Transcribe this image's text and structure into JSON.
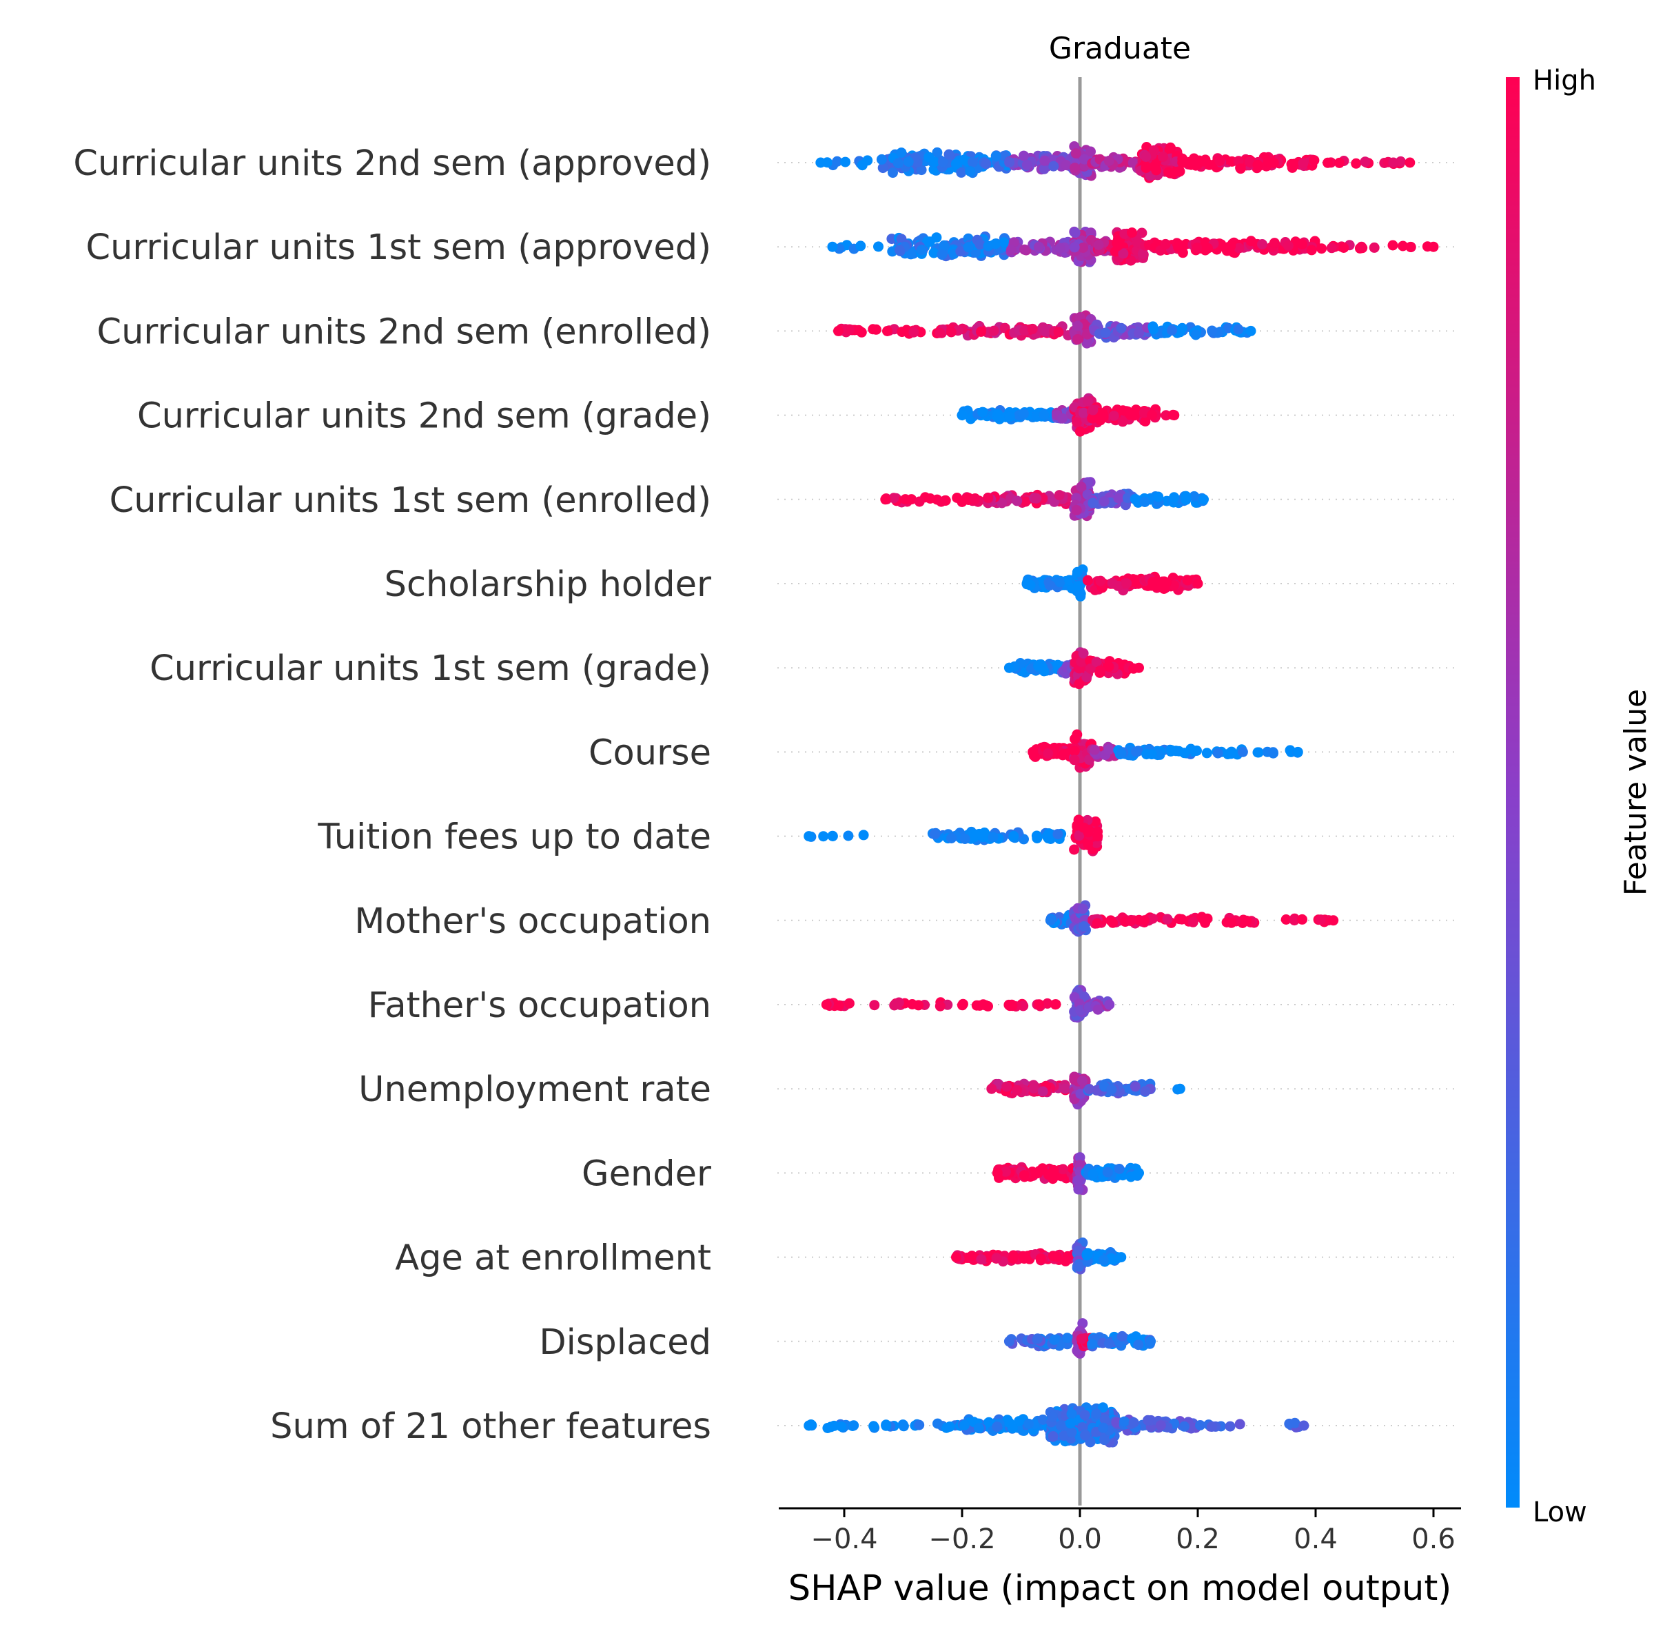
{
  "chart_data": {
    "type": "scatter",
    "subtype": "shap-beeswarm",
    "title": "Graduate",
    "xlabel": "SHAP value (impact on model output)",
    "xlim": [
      -0.51,
      0.645
    ],
    "xticks": [
      -0.4,
      -0.2,
      0.0,
      0.2,
      0.4,
      0.6
    ],
    "xtick_labels": [
      "−0.4",
      "−0.2",
      "0.0",
      "0.2",
      "0.4",
      "0.6"
    ],
    "grid": "dotted row guides",
    "colorbar": {
      "label": "Feature value",
      "high_label": "High",
      "low_label": "Low",
      "low_color": "#008bfb",
      "mid_color": "#8a3fc9",
      "high_color": "#ff0052"
    },
    "features": [
      {
        "name": "Curricular units 2nd sem (approved)",
        "min": -0.44,
        "max": 0.56,
        "clusters": [
          {
            "from": -0.44,
            "to": -0.34,
            "n": 8,
            "spread": 0.2,
            "c": 0.0
          },
          {
            "from": -0.34,
            "to": -0.12,
            "n": 110,
            "spread": 0.6,
            "c": 0.1
          },
          {
            "from": -0.12,
            "to": -0.01,
            "n": 60,
            "spread": 0.35,
            "c": 0.45
          },
          {
            "from": -0.01,
            "to": 0.02,
            "n": 60,
            "spread": 1.0,
            "c": 0.55
          },
          {
            "from": 0.02,
            "to": 0.1,
            "n": 40,
            "spread": 0.3,
            "c": 0.7
          },
          {
            "from": 0.1,
            "to": 0.17,
            "n": 120,
            "spread": 0.9,
            "c": 0.95
          },
          {
            "from": 0.17,
            "to": 0.4,
            "n": 90,
            "spread": 0.3,
            "c": 1.0
          },
          {
            "from": 0.4,
            "to": 0.56,
            "n": 16,
            "spread": 0.1,
            "c": 1.0
          }
        ]
      },
      {
        "name": "Curricular units 1st sem (approved)",
        "min": -0.42,
        "max": 0.6,
        "clusters": [
          {
            "from": -0.42,
            "to": -0.32,
            "n": 6,
            "spread": 0.15,
            "c": 0.0
          },
          {
            "from": -0.32,
            "to": -0.12,
            "n": 100,
            "spread": 0.55,
            "c": 0.1
          },
          {
            "from": -0.12,
            "to": -0.01,
            "n": 50,
            "spread": 0.35,
            "c": 0.55
          },
          {
            "from": -0.01,
            "to": 0.02,
            "n": 60,
            "spread": 1.0,
            "c": 0.6
          },
          {
            "from": 0.02,
            "to": 0.06,
            "n": 30,
            "spread": 0.3,
            "c": 0.8
          },
          {
            "from": 0.06,
            "to": 0.11,
            "n": 90,
            "spread": 0.9,
            "c": 0.95
          },
          {
            "from": 0.11,
            "to": 0.4,
            "n": 100,
            "spread": 0.3,
            "c": 1.0
          },
          {
            "from": 0.4,
            "to": 0.6,
            "n": 16,
            "spread": 0.1,
            "c": 1.0
          }
        ]
      },
      {
        "name": "Curricular units 2nd sem (enrolled)",
        "min": -0.41,
        "max": 0.29,
        "clusters": [
          {
            "from": -0.41,
            "to": -0.22,
            "n": 30,
            "spread": 0.12,
            "c": 1.0
          },
          {
            "from": -0.22,
            "to": -0.02,
            "n": 70,
            "spread": 0.25,
            "c": 0.9
          },
          {
            "from": -0.01,
            "to": 0.02,
            "n": 50,
            "spread": 1.0,
            "c": 0.65
          },
          {
            "from": 0.02,
            "to": 0.12,
            "n": 50,
            "spread": 0.35,
            "c": 0.4
          },
          {
            "from": 0.12,
            "to": 0.29,
            "n": 40,
            "spread": 0.2,
            "c": 0.0
          }
        ]
      },
      {
        "name": "Curricular units 2nd sem (grade)",
        "min": -0.2,
        "max": 0.16,
        "clusters": [
          {
            "from": -0.2,
            "to": -0.04,
            "n": 60,
            "spread": 0.22,
            "c": 0.0
          },
          {
            "from": -0.04,
            "to": -0.01,
            "n": 30,
            "spread": 0.35,
            "c": 0.5
          },
          {
            "from": -0.01,
            "to": 0.02,
            "n": 60,
            "spread": 1.0,
            "c": 0.9
          },
          {
            "from": 0.02,
            "to": 0.13,
            "n": 60,
            "spread": 0.4,
            "c": 1.0
          },
          {
            "from": 0.14,
            "to": 0.16,
            "n": 2,
            "spread": 0.0,
            "c": 1.0
          }
        ]
      },
      {
        "name": "Curricular units 1st sem (enrolled)",
        "min": -0.33,
        "max": 0.21,
        "clusters": [
          {
            "from": -0.33,
            "to": -0.16,
            "n": 35,
            "spread": 0.12,
            "c": 1.0
          },
          {
            "from": -0.16,
            "to": -0.02,
            "n": 60,
            "spread": 0.22,
            "c": 0.85
          },
          {
            "from": -0.01,
            "to": 0.02,
            "n": 50,
            "spread": 1.0,
            "c": 0.6
          },
          {
            "from": 0.02,
            "to": 0.09,
            "n": 40,
            "spread": 0.3,
            "c": 0.35
          },
          {
            "from": 0.09,
            "to": 0.21,
            "n": 40,
            "spread": 0.2,
            "c": 0.0
          }
        ]
      },
      {
        "name": "Scholarship holder",
        "min": -0.09,
        "max": 0.2,
        "clusters": [
          {
            "from": -0.09,
            "to": -0.01,
            "n": 50,
            "spread": 0.25,
            "c": 0.0
          },
          {
            "from": -0.005,
            "to": 0.005,
            "n": 30,
            "spread": 1.0,
            "c": 0.0
          },
          {
            "from": 0.01,
            "to": 0.2,
            "n": 90,
            "spread": 0.35,
            "c": 1.0
          }
        ]
      },
      {
        "name": "Curricular units 1st sem (grade)",
        "min": -0.12,
        "max": 0.1,
        "clusters": [
          {
            "from": -0.12,
            "to": -0.03,
            "n": 45,
            "spread": 0.22,
            "c": 0.0
          },
          {
            "from": -0.03,
            "to": -0.01,
            "n": 20,
            "spread": 0.3,
            "c": 0.4
          },
          {
            "from": -0.01,
            "to": 0.015,
            "n": 50,
            "spread": 1.0,
            "c": 0.85
          },
          {
            "from": 0.015,
            "to": 0.085,
            "n": 45,
            "spread": 0.35,
            "c": 1.0
          },
          {
            "from": 0.09,
            "to": 0.1,
            "n": 1,
            "spread": 0.0,
            "c": 1.0
          }
        ]
      },
      {
        "name": "Course",
        "min": -0.08,
        "max": 0.37,
        "clusters": [
          {
            "from": -0.08,
            "to": -0.01,
            "n": 40,
            "spread": 0.3,
            "c": 1.0
          },
          {
            "from": -0.01,
            "to": 0.02,
            "n": 50,
            "spread": 1.0,
            "c": 0.95
          },
          {
            "from": 0.02,
            "to": 0.06,
            "n": 20,
            "spread": 0.25,
            "c": 0.7
          },
          {
            "from": 0.06,
            "to": 0.28,
            "n": 50,
            "spread": 0.18,
            "c": 0.0
          },
          {
            "from": 0.3,
            "to": 0.37,
            "n": 8,
            "spread": 0.05,
            "c": 0.0
          }
        ]
      },
      {
        "name": "Tuition fees up to date",
        "min": -0.46,
        "max": 0.03,
        "clusters": [
          {
            "from": -0.46,
            "to": -0.3,
            "n": 6,
            "spread": 0.05,
            "c": 0.0
          },
          {
            "from": -0.25,
            "to": -0.03,
            "n": 60,
            "spread": 0.2,
            "c": 0.0
          },
          {
            "from": -0.01,
            "to": 0.03,
            "n": 60,
            "spread": 1.0,
            "c": 1.0
          }
        ]
      },
      {
        "name": "Mother's occupation",
        "min": -0.05,
        "max": 0.43,
        "clusters": [
          {
            "from": -0.05,
            "to": -0.01,
            "n": 20,
            "spread": 0.3,
            "c": 0.1
          },
          {
            "from": -0.01,
            "to": 0.01,
            "n": 40,
            "spread": 1.0,
            "c": 0.35
          },
          {
            "from": 0.02,
            "to": 0.3,
            "n": 60,
            "spread": 0.15,
            "c": 1.0
          },
          {
            "from": 0.32,
            "to": 0.43,
            "n": 10,
            "spread": 0.05,
            "c": 1.0
          }
        ]
      },
      {
        "name": "Father's occupation",
        "min": -0.43,
        "max": 0.05,
        "clusters": [
          {
            "from": -0.43,
            "to": -0.22,
            "n": 20,
            "spread": 0.1,
            "c": 1.0
          },
          {
            "from": -0.2,
            "to": -0.03,
            "n": 20,
            "spread": 0.12,
            "c": 1.0
          },
          {
            "from": -0.01,
            "to": 0.01,
            "n": 40,
            "spread": 1.0,
            "c": 0.4
          },
          {
            "from": 0.01,
            "to": 0.05,
            "n": 20,
            "spread": 0.35,
            "c": 0.5
          }
        ]
      },
      {
        "name": "Unemployment rate",
        "min": -0.15,
        "max": 0.17,
        "clusters": [
          {
            "from": -0.15,
            "to": -0.01,
            "n": 60,
            "spread": 0.25,
            "c": 0.9
          },
          {
            "from": -0.01,
            "to": 0.01,
            "n": 40,
            "spread": 1.0,
            "c": 0.6
          },
          {
            "from": 0.01,
            "to": 0.12,
            "n": 40,
            "spread": 0.25,
            "c": 0.25
          },
          {
            "from": 0.16,
            "to": 0.17,
            "n": 1,
            "spread": 0.0,
            "c": 0.0
          }
        ]
      },
      {
        "name": "Gender",
        "min": -0.14,
        "max": 0.1,
        "clusters": [
          {
            "from": -0.14,
            "to": -0.01,
            "n": 70,
            "spread": 0.3,
            "c": 1.0
          },
          {
            "from": -0.005,
            "to": 0.005,
            "n": 30,
            "spread": 1.0,
            "c": 0.55
          },
          {
            "from": 0.01,
            "to": 0.1,
            "n": 60,
            "spread": 0.25,
            "c": 0.0
          }
        ]
      },
      {
        "name": "Age at enrollment",
        "min": -0.21,
        "max": 0.07,
        "clusters": [
          {
            "from": -0.21,
            "to": -0.01,
            "n": 70,
            "spread": 0.25,
            "c": 1.0
          },
          {
            "from": -0.005,
            "to": 0.005,
            "n": 30,
            "spread": 1.0,
            "c": 0.3
          },
          {
            "from": 0.01,
            "to": 0.07,
            "n": 40,
            "spread": 0.25,
            "c": 0.0
          }
        ]
      },
      {
        "name": "Displaced",
        "min": -0.12,
        "max": 0.12,
        "clusters": [
          {
            "from": -0.12,
            "to": -0.01,
            "n": 40,
            "spread": 0.25,
            "c": 0.2
          },
          {
            "from": -0.005,
            "to": 0.005,
            "n": 30,
            "spread": 1.0,
            "c": 0.6
          },
          {
            "from": 0.0,
            "to": 0.02,
            "n": 20,
            "spread": 0.3,
            "c": 1.0
          },
          {
            "from": 0.02,
            "to": 0.12,
            "n": 40,
            "spread": 0.25,
            "c": 0.1
          }
        ]
      },
      {
        "name": "Sum of 21 other features",
        "min": -0.46,
        "max": 0.38,
        "clusters": [
          {
            "from": -0.46,
            "to": -0.2,
            "n": 30,
            "spread": 0.1,
            "c": 0.0
          },
          {
            "from": -0.2,
            "to": -0.05,
            "n": 70,
            "spread": 0.35,
            "c": 0.05
          },
          {
            "from": -0.05,
            "to": 0.06,
            "n": 220,
            "spread": 1.0,
            "c": 0.15
          },
          {
            "from": 0.06,
            "to": 0.2,
            "n": 60,
            "spread": 0.3,
            "c": 0.25
          },
          {
            "from": 0.2,
            "to": 0.38,
            "n": 14,
            "spread": 0.1,
            "c": 0.3
          }
        ]
      }
    ]
  }
}
